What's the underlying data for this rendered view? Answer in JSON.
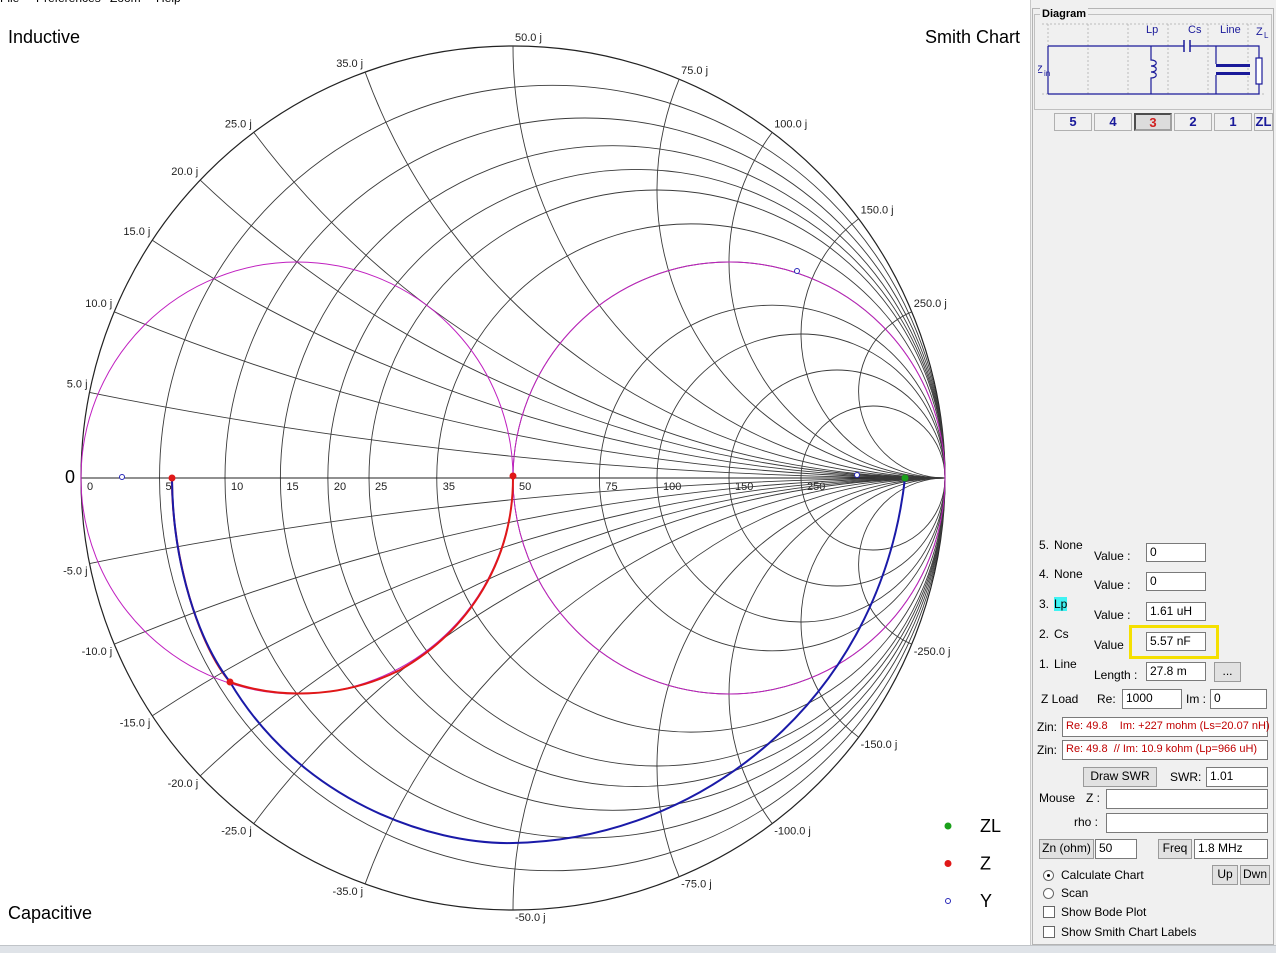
{
  "menu": [
    "File",
    "Preferences",
    "Zoom",
    "Help"
  ],
  "chart": {
    "top_left": "Inductive",
    "title": "Smith Chart",
    "bottom_left": "Capacitive",
    "origin": "0",
    "resistance_ticks": [
      0,
      5,
      10,
      15,
      20,
      25,
      35,
      50,
      75,
      100,
      150,
      250
    ],
    "reactance_ticks": [
      {
        "value": 5,
        "label": "5.0 j"
      },
      {
        "value": 10,
        "label": "10.0 j"
      },
      {
        "value": 15,
        "label": "15.0 j"
      },
      {
        "value": 20,
        "label": "20.0 j"
      },
      {
        "value": 25,
        "label": "25.0 j"
      },
      {
        "value": 35,
        "label": "35.0 j"
      },
      {
        "value": 50,
        "label": "50.0 j"
      },
      {
        "value": 75,
        "label": "75.0 j"
      },
      {
        "value": 100,
        "label": "100.0 j"
      },
      {
        "value": 150,
        "label": "150.0 j"
      },
      {
        "value": 250,
        "label": "250.0 j"
      },
      {
        "value": -5,
        "label": "-5.0 j"
      },
      {
        "value": -10,
        "label": "-10.0 j"
      },
      {
        "value": -15,
        "label": "-15.0 j"
      },
      {
        "value": -20,
        "label": "-20.0 j"
      },
      {
        "value": -25,
        "label": "-25.0 j"
      },
      {
        "value": -35,
        "label": "-35.0 j"
      },
      {
        "value": -50,
        "label": "-50.0 j"
      },
      {
        "value": -75,
        "label": "-75.0 j"
      },
      {
        "value": -100,
        "label": "-100.0 j"
      },
      {
        "value": -150,
        "label": "-150.0 j"
      },
      {
        "value": -250,
        "label": "-250.0 j"
      }
    ],
    "legend": [
      {
        "name": "ZL",
        "color": "#1aa01a"
      },
      {
        "name": "Z",
        "color": "#e01818"
      },
      {
        "name": "Y",
        "color": "#2828b8"
      }
    ]
  },
  "diagram": {
    "title": "Diagram",
    "zin": "Z",
    "zin_sub": "in",
    "lp": "Lp",
    "cs": "Cs",
    "line": "Line",
    "zl": "Z",
    "zl_sub": "L",
    "buttons": [
      "5",
      "4",
      "3",
      "2",
      "1",
      "ZL"
    ]
  },
  "components": [
    {
      "number": "5.",
      "name": "None",
      "field": "Value :",
      "value": "0"
    },
    {
      "number": "4.",
      "name": "None",
      "field": "Value :",
      "value": "0"
    },
    {
      "number": "3.",
      "name": "Lp",
      "field": "Value :",
      "value": "1.61 uH"
    },
    {
      "number": "2.",
      "name": "Cs",
      "field": "Value",
      "value": "5.57 nF"
    },
    {
      "number": "1.",
      "name": "Line",
      "field": "Length :",
      "value": "27.8 m",
      "button": "..."
    }
  ],
  "zload": {
    "label": "Z Load",
    "re_label": "Re:",
    "re": "1000",
    "im_label": "Im :",
    "im": "0"
  },
  "zin": [
    {
      "label": "Zin:",
      "text": "Re: 49.8    Im: +227 mohm (Ls=20.07 nH)"
    },
    {
      "label": "Zin:",
      "text": "Re: 49.8  // Im: 10.9 kohm (Lp=966 uH)"
    }
  ],
  "swr": {
    "button": "Draw SWR",
    "label": "SWR:",
    "value": "1.01"
  },
  "mouse": {
    "label": "Mouse",
    "z_label": "Z :",
    "rho_label": "rho :"
  },
  "zn": {
    "button": "Zn (ohm)",
    "value": "50"
  },
  "freq": {
    "button": "Freq",
    "value": "1.8 MHz"
  },
  "options": {
    "radios": [
      {
        "label": "Calculate Chart",
        "checked": true
      },
      {
        "label": "Scan",
        "checked": false
      }
    ],
    "up": "Up",
    "down": "Dwn",
    "checkboxes": [
      {
        "label": "Show Bode Plot",
        "checked": false
      },
      {
        "label": "Show Smith Chart Labels",
        "checked": false
      }
    ]
  }
}
